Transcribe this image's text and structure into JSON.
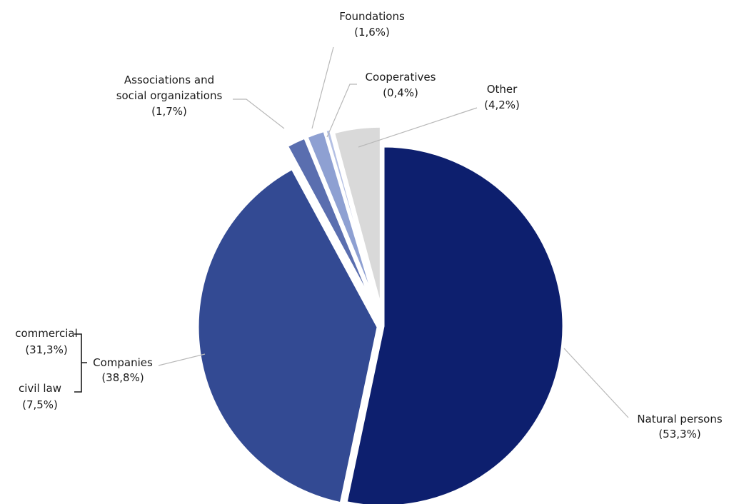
{
  "chart_data": {
    "type": "pie",
    "title": "",
    "slices": [
      {
        "label": "Natural persons",
        "pct_text": "(53,3%)",
        "value": 53.3,
        "color": "#0d1f6e"
      },
      {
        "label": "Companies",
        "pct_text": "(38,8%)",
        "value": 38.8,
        "color": "#334a93"
      },
      {
        "label": "Associations and social organizations",
        "label_lines": [
          "Associations and",
          "social organizations"
        ],
        "pct_text": "(1,7%)",
        "value": 1.7,
        "color": "#5a6eaf"
      },
      {
        "label": "Foundations",
        "pct_text": "(1,6%)",
        "value": 1.6,
        "color": "#8ea0d2"
      },
      {
        "label": "Cooperatives",
        "pct_text": "(0,4%)",
        "value": 0.4,
        "color": "#b4c0e4"
      },
      {
        "label": "Other",
        "pct_text": "(4,2%)",
        "value": 4.2,
        "color": "#d9d9d9"
      }
    ],
    "companies_breakdown": [
      {
        "label": "commercial",
        "pct_text": "(31,3%)",
        "value": 31.3
      },
      {
        "label": "civil law",
        "pct_text": "(7,5%)",
        "value": 7.5
      }
    ]
  }
}
